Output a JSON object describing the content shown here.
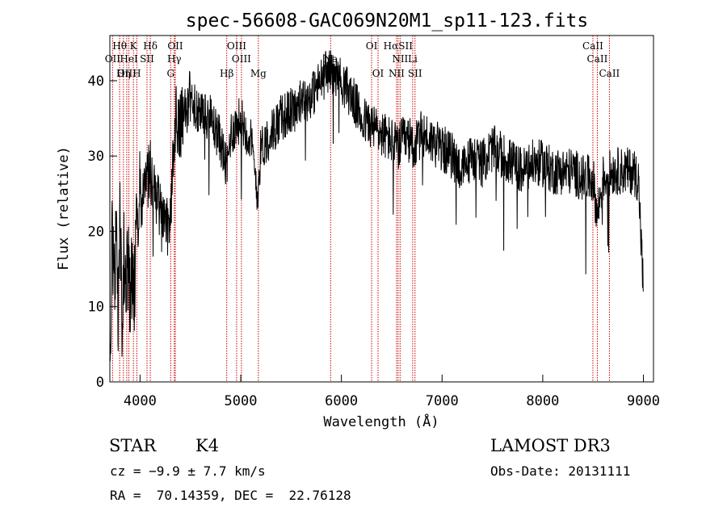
{
  "chart_data": {
    "type": "line",
    "title": "spec-56608-GAC069N20M1_sp11-123.fits",
    "xlabel": "Wavelength (Å)",
    "ylabel": "Flux (relative)",
    "xlim": [
      3700,
      9100
    ],
    "ylim": [
      0,
      46
    ],
    "x_ticks": [
      4000,
      5000,
      6000,
      7000,
      8000,
      9000
    ],
    "y_ticks": [
      0,
      10,
      20,
      30,
      40
    ],
    "grid": false,
    "series_color": "#000000",
    "line_marker_color": "#cc0000",
    "series": [
      {
        "x": [
          3700,
          3720,
          3740,
          3760,
          3780,
          3800,
          3820,
          3840,
          3860,
          3880,
          3900,
          3920,
          3940,
          3960,
          3980,
          4000,
          4050,
          4100,
          4150,
          4200,
          4250,
          4300,
          4350,
          4400,
          4450,
          4500,
          4600,
          4700,
          4800,
          4862,
          4900,
          5000,
          5100,
          5170,
          5200,
          5300,
          5400,
          5500,
          5600,
          5700,
          5800,
          5890,
          5900,
          6000,
          6100,
          6200,
          6300,
          6400,
          6500,
          6563,
          6600,
          6700,
          6720,
          6800,
          6900,
          7000,
          7100,
          7200,
          7300,
          7400,
          7500,
          7600,
          7700,
          7800,
          7900,
          8000,
          8100,
          8200,
          8300,
          8400,
          8500,
          8540,
          8600,
          8700,
          8800,
          8900,
          8950,
          9000
        ],
        "y": [
          3,
          18,
          12,
          20,
          9,
          22,
          8,
          17,
          12,
          15,
          11,
          14,
          10,
          19,
          22,
          24,
          26,
          28,
          25,
          22,
          20,
          21,
          35,
          34,
          36,
          37,
          36,
          35,
          32,
          28,
          33,
          35,
          32,
          25,
          31,
          33,
          35,
          36,
          37,
          38,
          40,
          42,
          41,
          40,
          38,
          35,
          34,
          33,
          32,
          31,
          32,
          32,
          31,
          33,
          32,
          31,
          30,
          28,
          30,
          29,
          31,
          30,
          29,
          28,
          29,
          29,
          28,
          28,
          28,
          27,
          27,
          22,
          27,
          28,
          28,
          28,
          27,
          12
        ]
      }
    ],
    "spectral_lines": [
      {
        "label": "Hθ",
        "x": 3797,
        "row": 1
      },
      {
        "label": "K",
        "x": 3934,
        "row": 1
      },
      {
        "label": "Hδ",
        "x": 4102,
        "row": 1
      },
      {
        "label": "OII",
        "x": 4350,
        "row": 1
      },
      {
        "label": "OIII",
        "x": 4959,
        "row": 1
      },
      {
        "label": "OI",
        "x": 6300,
        "row": 1
      },
      {
        "label": "HαSII",
        "x": 6563,
        "row": 1
      },
      {
        "label": "CaII",
        "x": 8498,
        "row": 1
      },
      {
        "label": "OII",
        "x": 3727,
        "row": 2
      },
      {
        "label": "HeI",
        "x": 3889,
        "row": 2
      },
      {
        "label": "SII",
        "x": 4069,
        "row": 2
      },
      {
        "label": "Hγ",
        "x": 4340,
        "row": 2
      },
      {
        "label": "OIII",
        "x": 5007,
        "row": 2
      },
      {
        "label": "Na",
        "x": 5893,
        "row": 2
      },
      {
        "label": "NII",
        "x": 6583,
        "row": 2
      },
      {
        "label": "Li",
        "x": 6708,
        "row": 2
      },
      {
        "label": "CaII",
        "x": 8542,
        "row": 2
      },
      {
        "label": "OIII",
        "x": 3868,
        "row": 3
      },
      {
        "label": "Hη",
        "x": 3835,
        "row": 3
      },
      {
        "label": "H",
        "x": 3968,
        "row": 3
      },
      {
        "label": "G",
        "x": 4304,
        "row": 3
      },
      {
        "label": "Hβ",
        "x": 4861,
        "row": 3
      },
      {
        "label": "Mg",
        "x": 5175,
        "row": 3
      },
      {
        "label": "OI",
        "x": 6364,
        "row": 3
      },
      {
        "label": "NII",
        "x": 6548,
        "row": 3
      },
      {
        "label": "SII",
        "x": 6731,
        "row": 3
      },
      {
        "label": "CaII",
        "x": 8662,
        "row": 3
      }
    ]
  },
  "info": {
    "class": "STAR",
    "subclass": "K4",
    "survey": "LAMOST DR3",
    "cz": "cz = −9.9 ± 7.7 km/s",
    "obs_date": "Obs-Date: 20131111",
    "coords": "RA =  70.14359, DEC =  22.76128"
  }
}
